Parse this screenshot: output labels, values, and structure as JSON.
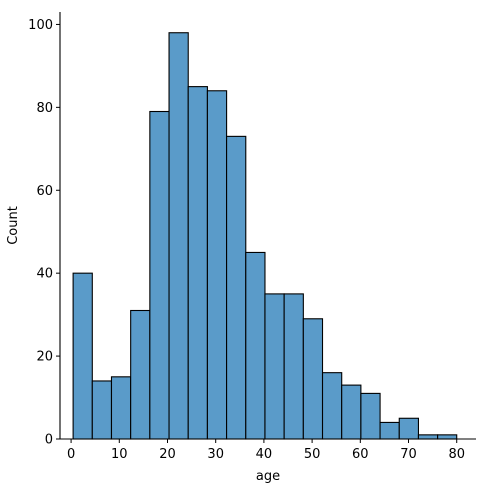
{
  "chart_data": {
    "type": "bar",
    "subtype": "histogram",
    "xlabel": "age",
    "ylabel": "Count",
    "xlim": [
      -2.3,
      84.0
    ],
    "ylim": [
      0,
      103
    ],
    "x_ticks": [
      0,
      10,
      20,
      30,
      40,
      50,
      60,
      70,
      80
    ],
    "y_ticks": [
      0,
      20,
      40,
      60,
      80,
      100
    ],
    "grid": false,
    "bar_color": "#5a9bc9",
    "edge_color": "#000000",
    "bins": [
      {
        "start": 0.42,
        "end": 4.4,
        "count": 40
      },
      {
        "start": 4.4,
        "end": 8.38,
        "count": 14
      },
      {
        "start": 8.38,
        "end": 12.36,
        "count": 15
      },
      {
        "start": 12.36,
        "end": 16.34,
        "count": 31
      },
      {
        "start": 16.34,
        "end": 20.32,
        "count": 79
      },
      {
        "start": 20.32,
        "end": 24.3,
        "count": 98
      },
      {
        "start": 24.3,
        "end": 28.28,
        "count": 85
      },
      {
        "start": 28.28,
        "end": 32.26,
        "count": 84
      },
      {
        "start": 32.26,
        "end": 36.24,
        "count": 73
      },
      {
        "start": 36.24,
        "end": 40.22,
        "count": 45
      },
      {
        "start": 40.22,
        "end": 44.2,
        "count": 35
      },
      {
        "start": 44.2,
        "end": 48.18,
        "count": 35
      },
      {
        "start": 48.18,
        "end": 52.16,
        "count": 29
      },
      {
        "start": 52.16,
        "end": 56.14,
        "count": 16
      },
      {
        "start": 56.14,
        "end": 60.12,
        "count": 13
      },
      {
        "start": 60.12,
        "end": 64.1,
        "count": 11
      },
      {
        "start": 64.1,
        "end": 68.08,
        "count": 4
      },
      {
        "start": 68.08,
        "end": 72.06,
        "count": 5
      },
      {
        "start": 72.06,
        "end": 76.04,
        "count": 1
      },
      {
        "start": 76.04,
        "end": 80.0,
        "count": 1
      }
    ]
  }
}
